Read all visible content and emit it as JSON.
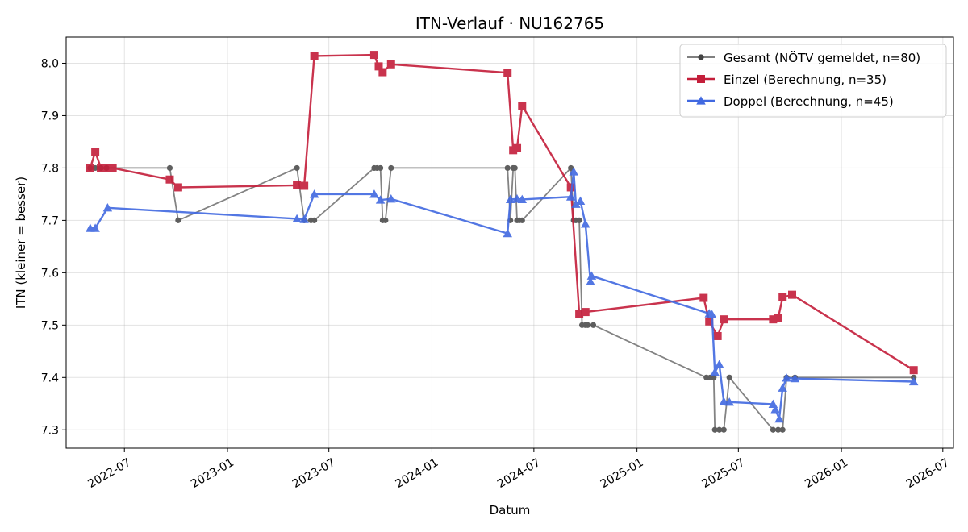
{
  "chart_data": {
    "type": "line",
    "title": "ITN-Verlauf · NU162765",
    "xlabel": "Datum",
    "ylabel": "ITN  (kleiner = besser)",
    "xlim": [
      "2022-03-19",
      "2026-07-20"
    ],
    "ylim": [
      7.265,
      8.05
    ],
    "x_ticks": [
      "2022-07",
      "2023-01",
      "2023-07",
      "2024-01",
      "2024-07",
      "2025-01",
      "2025-07",
      "2026-01",
      "2026-07"
    ],
    "y_ticks": [
      7.3,
      7.4,
      7.5,
      7.6,
      7.7,
      7.8,
      7.9,
      8.0
    ],
    "grid": true,
    "legend_position": "top-right",
    "series": [
      {
        "name": "Gesamt (NÖTV gemeldet, n=80)",
        "color": "#6e6e6e",
        "point_color": "#444444",
        "marker": "circle",
        "points": [
          [
            "2022-05-01",
            7.8
          ],
          [
            "2022-05-10",
            7.8
          ],
          [
            "2022-05-20",
            7.8
          ],
          [
            "2022-05-30",
            7.8
          ],
          [
            "2022-09-20",
            7.8
          ],
          [
            "2022-10-05",
            7.7
          ],
          [
            "2023-05-05",
            7.8
          ],
          [
            "2023-05-18",
            7.7
          ],
          [
            "2023-05-30",
            7.7
          ],
          [
            "2023-06-05",
            7.7
          ],
          [
            "2023-09-20",
            7.8
          ],
          [
            "2023-09-25",
            7.8
          ],
          [
            "2023-10-01",
            7.8
          ],
          [
            "2023-10-05",
            7.7
          ],
          [
            "2023-10-10",
            7.7
          ],
          [
            "2023-10-20",
            7.8
          ],
          [
            "2024-05-15",
            7.8
          ],
          [
            "2024-05-20",
            7.7
          ],
          [
            "2024-05-25",
            7.8
          ],
          [
            "2024-05-28",
            7.8
          ],
          [
            "2024-06-01",
            7.7
          ],
          [
            "2024-06-05",
            7.7
          ],
          [
            "2024-06-10",
            7.7
          ],
          [
            "2024-09-05",
            7.8
          ],
          [
            "2024-09-10",
            7.7
          ],
          [
            "2024-09-14",
            7.7
          ],
          [
            "2024-09-20",
            7.7
          ],
          [
            "2024-09-25",
            7.5
          ],
          [
            "2024-10-01",
            7.5
          ],
          [
            "2024-10-05",
            7.5
          ],
          [
            "2024-10-15",
            7.5
          ],
          [
            "2025-05-05",
            7.4
          ],
          [
            "2025-05-12",
            7.4
          ],
          [
            "2025-05-18",
            7.4
          ],
          [
            "2025-05-20",
            7.3
          ],
          [
            "2025-05-28",
            7.3
          ],
          [
            "2025-06-05",
            7.3
          ],
          [
            "2025-06-15",
            7.4
          ],
          [
            "2025-09-01",
            7.3
          ],
          [
            "2025-09-10",
            7.3
          ],
          [
            "2025-09-18",
            7.3
          ],
          [
            "2025-09-25",
            7.4
          ],
          [
            "2025-10-10",
            7.4
          ],
          [
            "2026-05-10",
            7.4
          ]
        ]
      },
      {
        "name": "Einzel (Berechnung, n=35)",
        "color": "#c41e3a",
        "point_color": "#c41e3a",
        "marker": "square",
        "points": [
          [
            "2022-05-01",
            7.8
          ],
          [
            "2022-05-10",
            7.831
          ],
          [
            "2022-05-20",
            7.8
          ],
          [
            "2022-05-30",
            7.8
          ],
          [
            "2022-06-10",
            7.8
          ],
          [
            "2022-09-20",
            7.778
          ],
          [
            "2022-10-05",
            7.763
          ],
          [
            "2023-05-05",
            7.767
          ],
          [
            "2023-05-18",
            7.766
          ],
          [
            "2023-06-05",
            8.014
          ],
          [
            "2023-09-20",
            8.016
          ],
          [
            "2023-09-28",
            7.994
          ],
          [
            "2023-10-05",
            7.983
          ],
          [
            "2023-10-20",
            7.998
          ],
          [
            "2024-05-15",
            7.982
          ],
          [
            "2024-05-25",
            7.834
          ],
          [
            "2024-06-01",
            7.838
          ],
          [
            "2024-06-10",
            7.919
          ],
          [
            "2024-09-05",
            7.763
          ],
          [
            "2024-09-20",
            7.522
          ],
          [
            "2024-10-01",
            7.525
          ],
          [
            "2025-04-30",
            7.552
          ],
          [
            "2025-05-10",
            7.507
          ],
          [
            "2025-05-25",
            7.479
          ],
          [
            "2025-06-05",
            7.511
          ],
          [
            "2025-09-01",
            7.511
          ],
          [
            "2025-09-10",
            7.513
          ],
          [
            "2025-09-18",
            7.553
          ],
          [
            "2025-10-05",
            7.558
          ],
          [
            "2026-05-10",
            7.414
          ]
        ]
      },
      {
        "name": "Doppel (Berechnung, n=45)",
        "color": "#4169e1",
        "point_color": "#4169e1",
        "marker": "triangle",
        "points": [
          [
            "2022-05-01",
            7.685
          ],
          [
            "2022-05-10",
            7.685
          ],
          [
            "2022-06-01",
            7.724
          ],
          [
            "2023-05-05",
            7.703
          ],
          [
            "2023-05-18",
            7.702
          ],
          [
            "2023-06-05",
            7.75
          ],
          [
            "2023-09-20",
            7.75
          ],
          [
            "2023-10-01",
            7.739
          ],
          [
            "2023-10-20",
            7.741
          ],
          [
            "2024-05-15",
            7.675
          ],
          [
            "2024-05-20",
            7.74
          ],
          [
            "2024-06-01",
            7.741
          ],
          [
            "2024-06-10",
            7.74
          ],
          [
            "2024-09-05",
            7.745
          ],
          [
            "2024-09-10",
            7.793
          ],
          [
            "2024-09-14",
            7.731
          ],
          [
            "2024-09-22",
            7.737
          ],
          [
            "2024-10-01",
            7.693
          ],
          [
            "2024-10-10",
            7.583
          ],
          [
            "2024-10-12",
            7.594
          ],
          [
            "2025-05-10",
            7.522
          ],
          [
            "2025-05-15",
            7.52
          ],
          [
            "2025-05-20",
            7.41
          ],
          [
            "2025-05-28",
            7.425
          ],
          [
            "2025-06-05",
            7.354
          ],
          [
            "2025-06-15",
            7.353
          ],
          [
            "2025-09-01",
            7.349
          ],
          [
            "2025-09-05",
            7.339
          ],
          [
            "2025-09-12",
            7.321
          ],
          [
            "2025-09-18",
            7.38
          ],
          [
            "2025-09-25",
            7.399
          ],
          [
            "2025-10-10",
            7.398
          ],
          [
            "2026-05-10",
            7.392
          ]
        ]
      }
    ]
  }
}
